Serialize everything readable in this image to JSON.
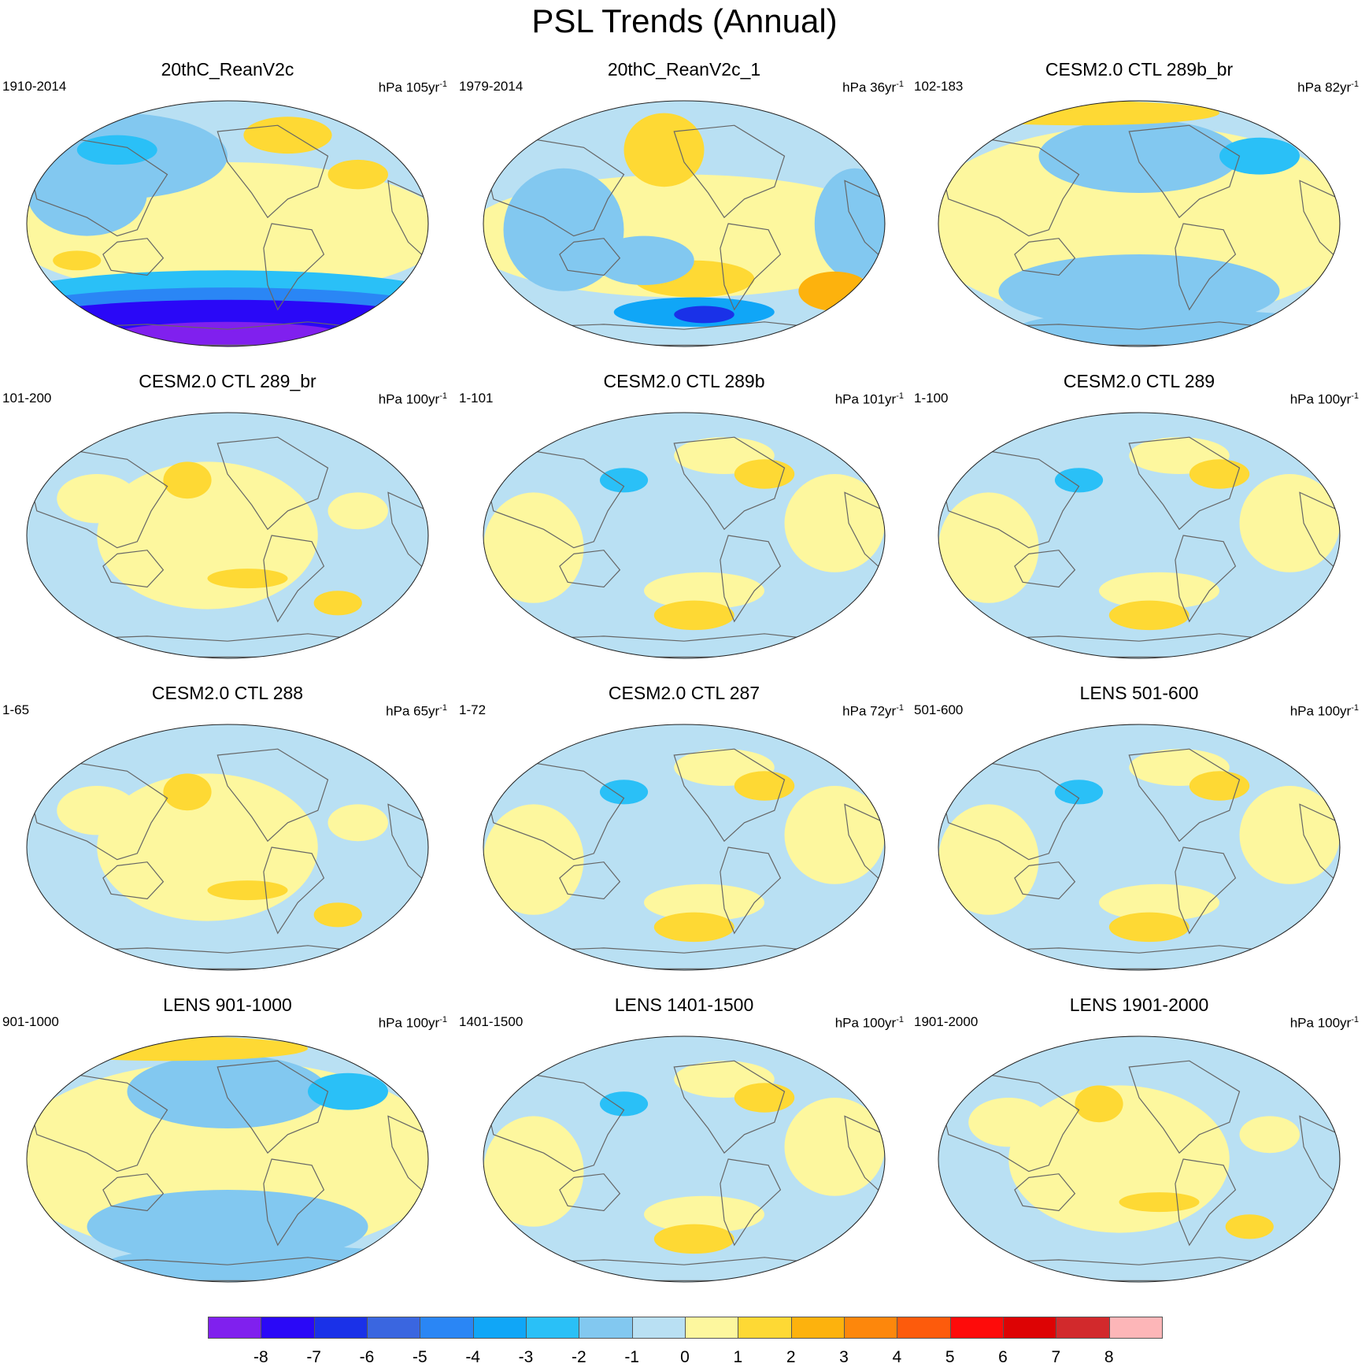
{
  "title": "PSL Trends (Annual)",
  "panels": [
    {
      "title": "20thC_ReanV2c",
      "period": "1910-2014",
      "units_prefix": "hPa ",
      "units_value": "105yr",
      "units_exp": "-1",
      "pattern": "rean"
    },
    {
      "title": "20thC_ReanV2c_1",
      "period": "1979-2014",
      "units_prefix": "hPa ",
      "units_value": "36yr",
      "units_exp": "-1",
      "pattern": "rean1"
    },
    {
      "title": "CESM2.0 CTL 289b_br",
      "period": "102-183",
      "units_prefix": "hPa ",
      "units_value": "82yr",
      "units_exp": "-1",
      "pattern": "weak"
    },
    {
      "title": "CESM2.0 CTL 289_br",
      "period": "101-200",
      "units_prefix": "hPa ",
      "units_value": "100yr",
      "units_exp": "-1",
      "pattern": "warm"
    },
    {
      "title": "CESM2.0 CTL 289b",
      "period": "1-101",
      "units_prefix": "hPa ",
      "units_value": "101yr",
      "units_exp": "-1",
      "pattern": "cool"
    },
    {
      "title": "CESM2.0 CTL 289",
      "period": "1-100",
      "units_prefix": "hPa ",
      "units_value": "100yr",
      "units_exp": "-1",
      "pattern": "cool"
    },
    {
      "title": "CESM2.0 CTL 288",
      "period": "1-65",
      "units_prefix": "hPa ",
      "units_value": "65yr",
      "units_exp": "-1",
      "pattern": "warm"
    },
    {
      "title": "CESM2.0 CTL 287",
      "period": "1-72",
      "units_prefix": "hPa ",
      "units_value": "72yr",
      "units_exp": "-1",
      "pattern": "cool"
    },
    {
      "title": "LENS 501-600",
      "period": "501-600",
      "units_prefix": "hPa ",
      "units_value": "100yr",
      "units_exp": "-1",
      "pattern": "cool"
    },
    {
      "title": "LENS 901-1000",
      "period": "901-1000",
      "units_prefix": "hPa ",
      "units_value": "100yr",
      "units_exp": "-1",
      "pattern": "weak"
    },
    {
      "title": "LENS 1401-1500",
      "period": "1401-1500",
      "units_prefix": "hPa ",
      "units_value": "100yr",
      "units_exp": "-1",
      "pattern": "cool"
    },
    {
      "title": "LENS 1901-2000",
      "period": "1901-2000",
      "units_prefix": "hPa ",
      "units_value": "100yr",
      "units_exp": "-1",
      "pattern": "warm"
    }
  ],
  "colorbar": {
    "colors": [
      "#8020ee",
      "#2a08f7",
      "#1a31e8",
      "#3a66e0",
      "#2a86f5",
      "#10a6f7",
      "#2ac0f7",
      "#82c8f0",
      "#b9e0f3",
      "#fdf79e",
      "#fed934",
      "#fdb20d",
      "#fd870c",
      "#fd5b0c",
      "#fe0b0a",
      "#dd0304",
      "#d2292c",
      "#fdb6b8"
    ],
    "labels": [
      "-8",
      "-7",
      "-6",
      "-5",
      "-4",
      "-3",
      "-2",
      "-1",
      "0",
      "1",
      "2",
      "3",
      "4",
      "5",
      "6",
      "7",
      "8"
    ]
  }
}
